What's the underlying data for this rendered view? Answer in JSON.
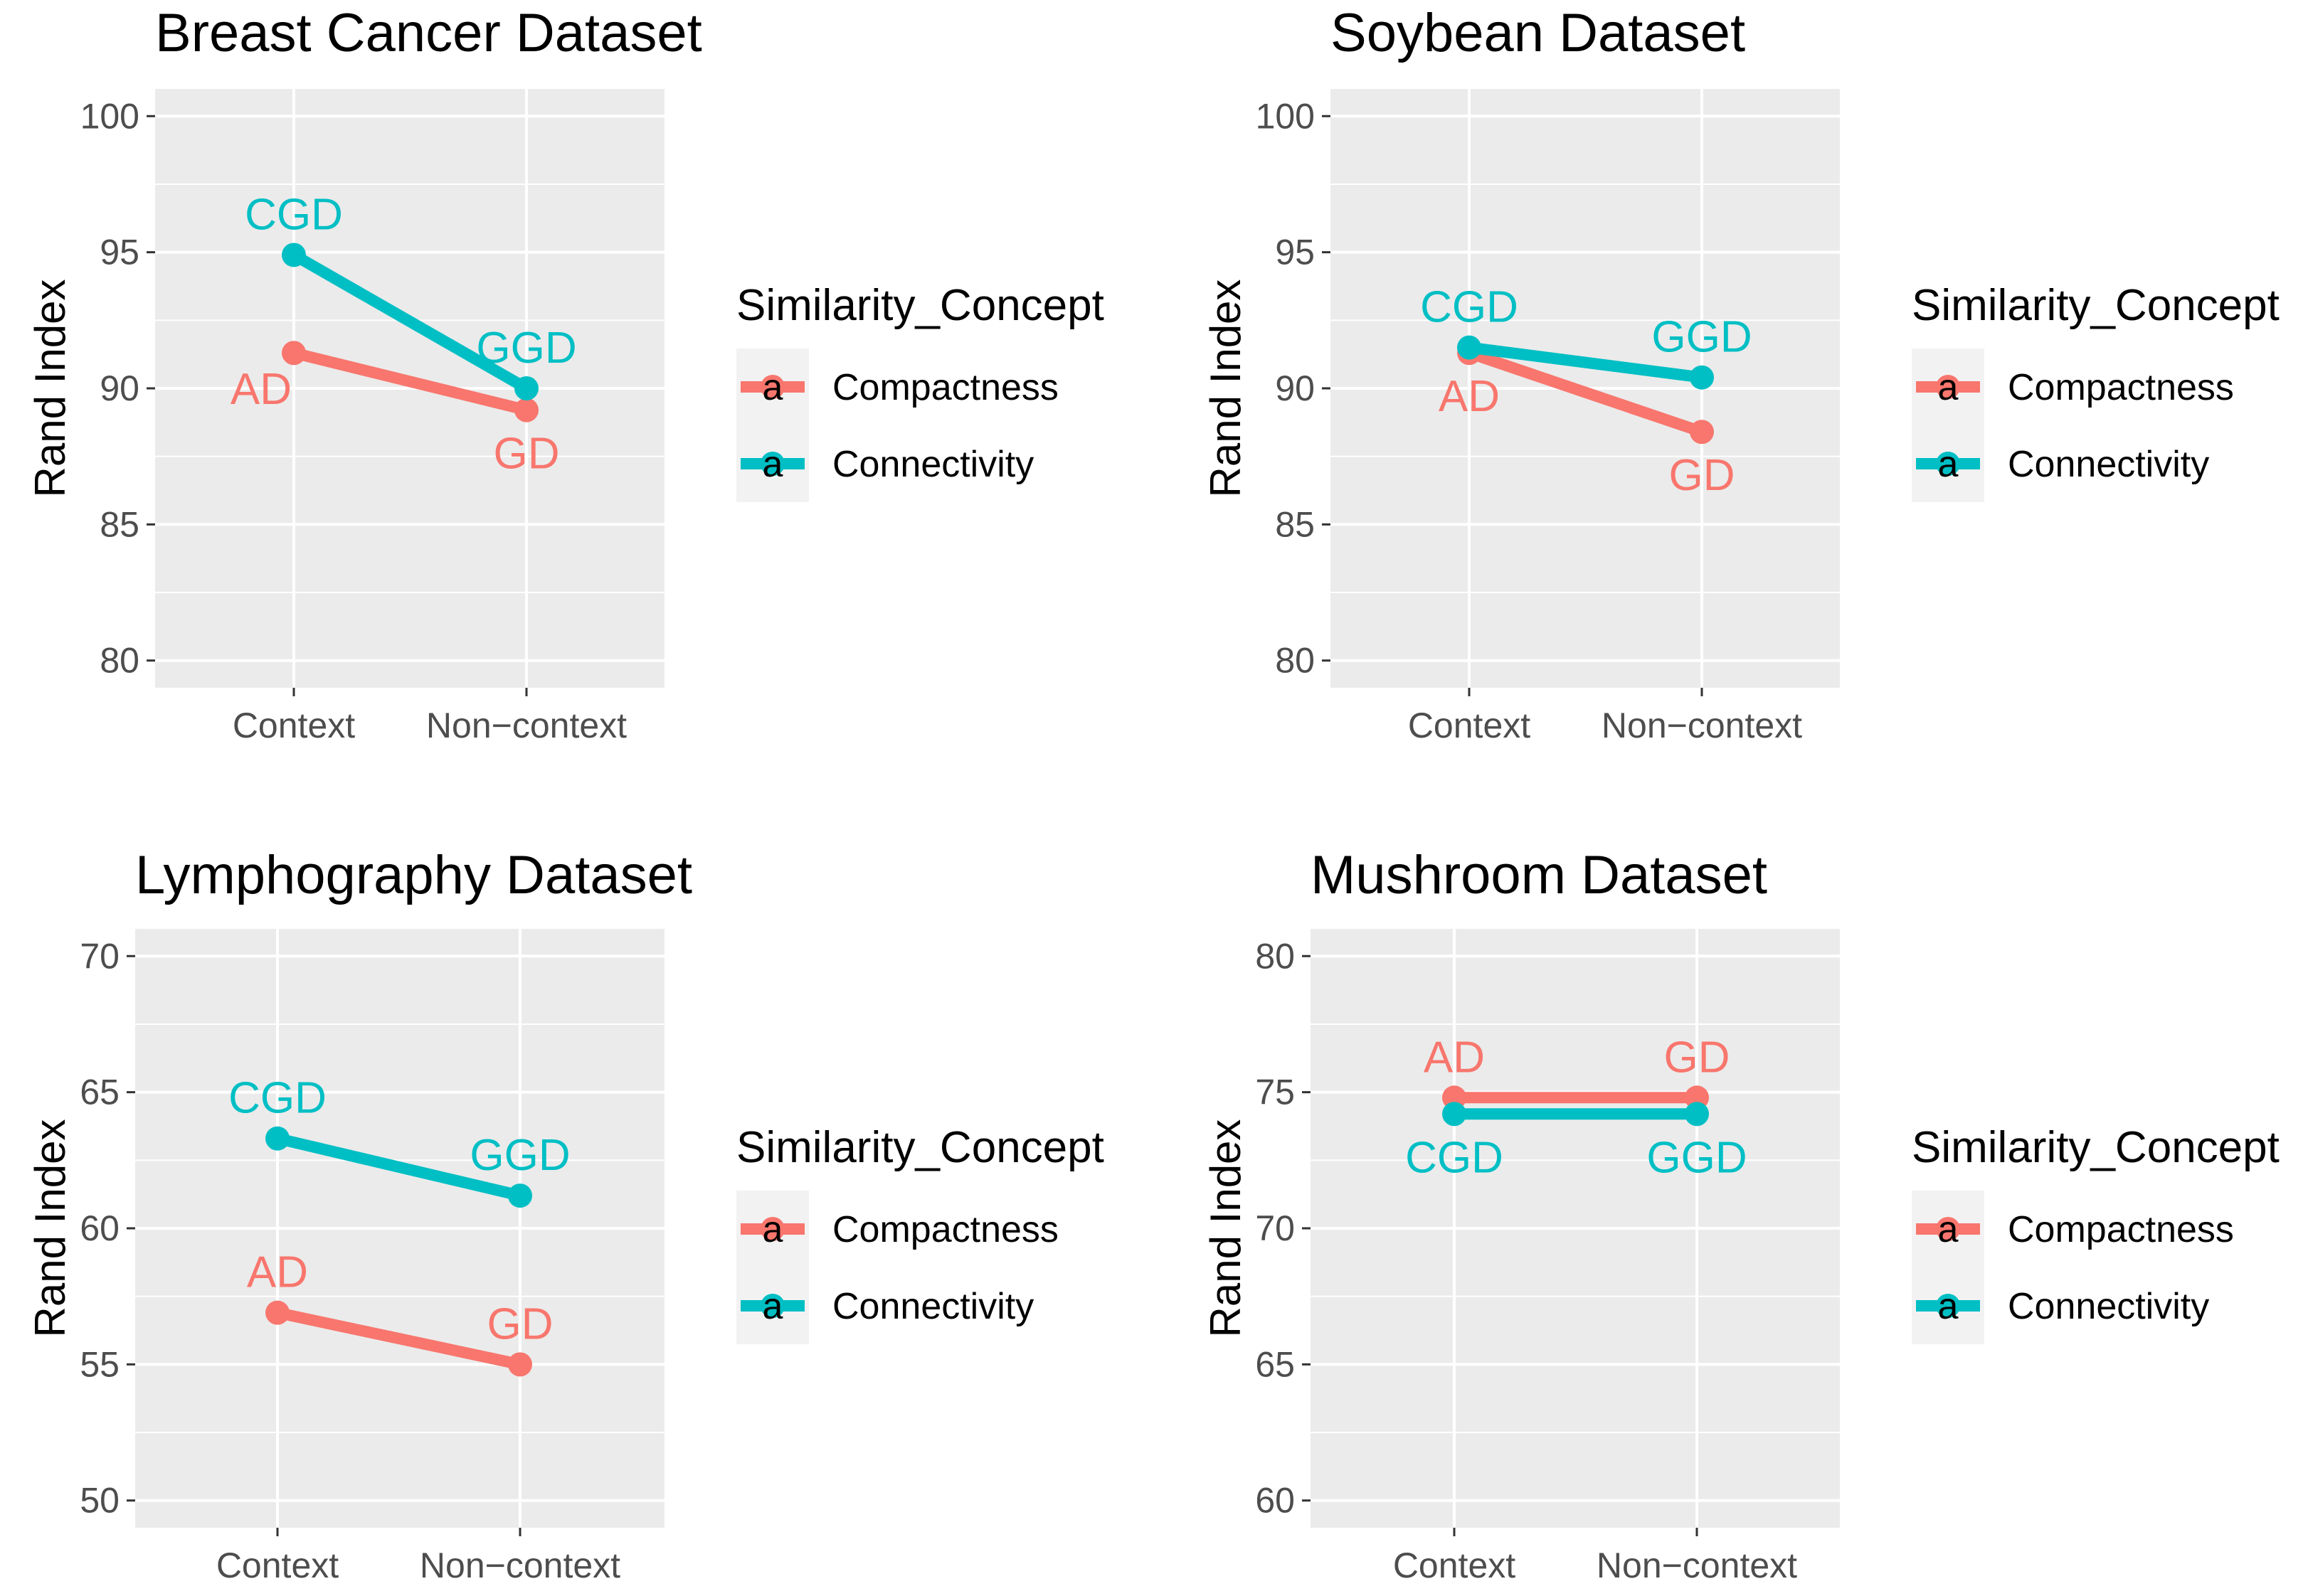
{
  "colors": {
    "compactness": "#F8766D",
    "connectivity": "#00BFC4",
    "panel_bg": "#EBEBEB",
    "legend_key_bg": "#F2F2F2",
    "grid": "#FFFFFF",
    "tick_text": "#4D4D4D"
  },
  "legend": {
    "title": "Similarity_Concept",
    "key_glyph": "a",
    "items": [
      {
        "name": "Compactness",
        "color_key": "compactness"
      },
      {
        "name": "Connectivity",
        "color_key": "connectivity"
      }
    ]
  },
  "chart_data": [
    {
      "type": "line",
      "title": "Breast Cancer Dataset",
      "xlabel": "",
      "ylabel": "Rand Index",
      "categories": [
        "Context",
        "Non−context"
      ],
      "yticks": [
        80,
        85,
        90,
        95,
        100
      ],
      "ytick_labels": [
        "80",
        "85",
        "90",
        "95",
        "100"
      ],
      "ylim": [
        79,
        101
      ],
      "series": [
        {
          "name": "Compactness",
          "values": [
            91.3,
            89.2
          ],
          "point_labels": [
            "AD",
            "GD"
          ],
          "label_pos": [
            "below-left",
            "below"
          ]
        },
        {
          "name": "Connectivity",
          "values": [
            94.9,
            90.0
          ],
          "point_labels": [
            "CGD",
            "GGD"
          ],
          "label_pos": [
            "above",
            "above"
          ]
        }
      ]
    },
    {
      "type": "line",
      "title": "Soybean Dataset",
      "xlabel": "",
      "ylabel": "Rand Index",
      "categories": [
        "Context",
        "Non−context"
      ],
      "yticks": [
        80,
        85,
        90,
        95,
        100
      ],
      "ytick_labels": [
        "80",
        "85",
        "90",
        "95",
        "100"
      ],
      "ylim": [
        79,
        101
      ],
      "series": [
        {
          "name": "Compactness",
          "values": [
            91.3,
            88.4
          ],
          "point_labels": [
            "AD",
            "GD"
          ],
          "label_pos": [
            "below",
            "below"
          ]
        },
        {
          "name": "Connectivity",
          "values": [
            91.5,
            90.4
          ],
          "point_labels": [
            "CGD",
            "GGD"
          ],
          "label_pos": [
            "above",
            "above"
          ]
        }
      ]
    },
    {
      "type": "line",
      "title": "Lymphography Dataset",
      "xlabel": "",
      "ylabel": "Rand Index",
      "categories": [
        "Context",
        "Non−context"
      ],
      "yticks": [
        50,
        55,
        60,
        65,
        70
      ],
      "ytick_labels": [
        "50",
        "55",
        "60",
        "65",
        "70"
      ],
      "ylim": [
        49,
        71
      ],
      "series": [
        {
          "name": "Compactness",
          "values": [
            56.9,
            55.0
          ],
          "point_labels": [
            "AD",
            "GD"
          ],
          "label_pos": [
            "above",
            "above"
          ]
        },
        {
          "name": "Connectivity",
          "values": [
            63.3,
            61.2
          ],
          "point_labels": [
            "CGD",
            "GGD"
          ],
          "label_pos": [
            "above",
            "above"
          ]
        }
      ]
    },
    {
      "type": "line",
      "title": "Mushroom Dataset",
      "xlabel": "",
      "ylabel": "Rand Index",
      "categories": [
        "Context",
        "Non−context"
      ],
      "yticks": [
        60,
        65,
        70,
        75,
        80
      ],
      "ytick_labels": [
        "60",
        "65",
        "70",
        "75",
        "80"
      ],
      "ylim": [
        59,
        81
      ],
      "series": [
        {
          "name": "Compactness",
          "values": [
            74.8,
            74.8
          ],
          "point_labels": [
            "AD",
            "GD"
          ],
          "label_pos": [
            "above",
            "above"
          ]
        },
        {
          "name": "Connectivity",
          "values": [
            74.2,
            74.2
          ],
          "point_labels": [
            "CGD",
            "GGD"
          ],
          "label_pos": [
            "below",
            "below"
          ]
        }
      ]
    }
  ]
}
